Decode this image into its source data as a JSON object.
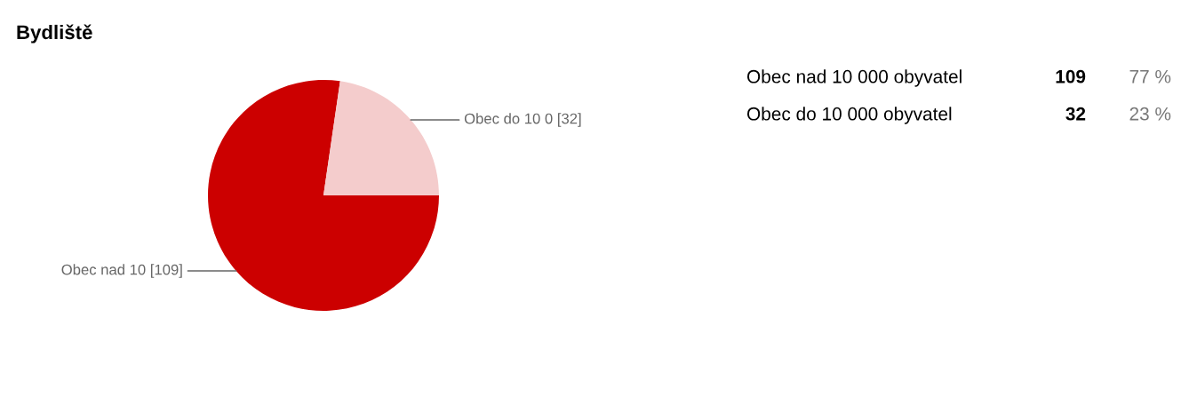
{
  "chart_data": {
    "type": "pie",
    "title": "Bydliště",
    "categories": [
      "Obec nad 10",
      "Obec do 10 0"
    ],
    "values": [
      109,
      32
    ],
    "colors": [
      "#cc0000",
      "#f4cccc"
    ],
    "value_labels": [
      "[109]",
      "[32]"
    ],
    "annotations": [
      "Obec nad 10 000 obyvatel",
      "109",
      "77 %",
      "Obec do 10 000 obyvatel",
      "32",
      "23 %"
    ]
  }
}
